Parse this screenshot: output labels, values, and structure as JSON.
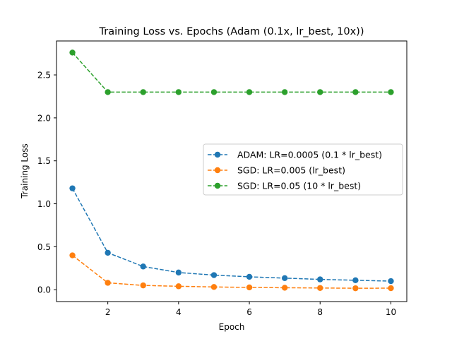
{
  "chart_data": {
    "type": "line",
    "title": "Training Loss vs. Epochs (Adam (0.1x, lr_best, 10x))",
    "xlabel": "Epoch",
    "ylabel": "Training Loss",
    "x": [
      1,
      2,
      3,
      4,
      5,
      6,
      7,
      8,
      9,
      10
    ],
    "xlim": [
      0.55,
      10.45
    ],
    "ylim": [
      -0.138,
      2.895
    ],
    "xticks": [
      2,
      4,
      6,
      8,
      10
    ],
    "yticks": [
      0.0,
      0.5,
      1.0,
      1.5,
      2.0,
      2.5
    ],
    "grid": false,
    "legend_position": "center-right",
    "series": [
      {
        "name": "ADAM: LR=0.0005 (0.1 * lr_best)",
        "color": "#1f77b4",
        "line_style": "dashed",
        "marker": "circle",
        "values": [
          1.18,
          0.43,
          0.27,
          0.2,
          0.17,
          0.15,
          0.135,
          0.12,
          0.11,
          0.1
        ]
      },
      {
        "name": "SGD: LR=0.005 (lr_best)",
        "color": "#ff7f0e",
        "line_style": "dashed",
        "marker": "circle",
        "values": [
          0.4,
          0.08,
          0.05,
          0.04,
          0.032,
          0.027,
          0.023,
          0.02,
          0.017,
          0.018
        ]
      },
      {
        "name": "SGD: LR=0.05 (10 * lr_best)",
        "color": "#2ca02c",
        "line_style": "dashed",
        "marker": "circle",
        "values": [
          2.76,
          2.3,
          2.3,
          2.3,
          2.3,
          2.3,
          2.3,
          2.3,
          2.3,
          2.3
        ]
      }
    ]
  }
}
